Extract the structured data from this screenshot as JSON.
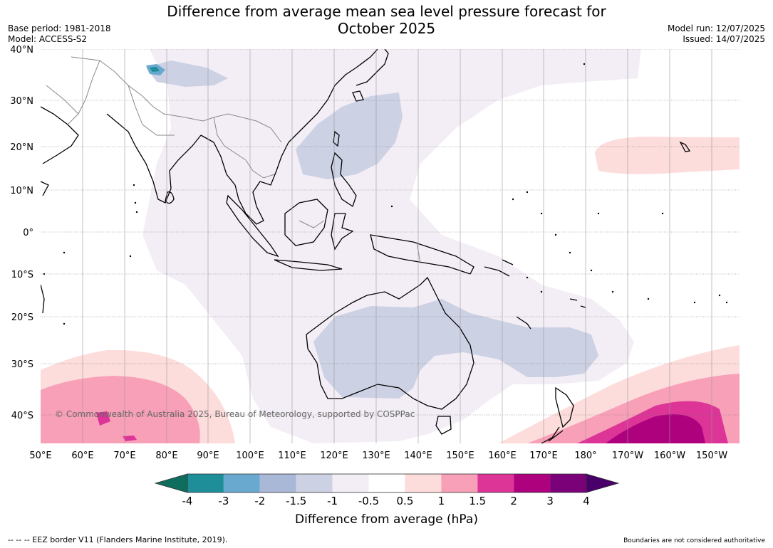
{
  "title_line1": "Difference from average mean sea level pressure forecast for",
  "title_line2": "October 2025",
  "base_period": "Base period: 1981-2018",
  "model": "Model: ACCESS-S2",
  "model_run": "Model run: 12/07/2025",
  "issued": "Issued: 14/07/2025",
  "copyright": "© Commonwealth of Australia 2025, Bureau of Meteorology, supported by COSPPac",
  "lat_labels": [
    "40°N",
    "30°N",
    "20°N",
    "10°N",
    "0°",
    "10°S",
    "20°S",
    "30°S",
    "40°S"
  ],
  "lon_labels": [
    "50°E",
    "60°E",
    "70°E",
    "80°E",
    "90°E",
    "100°E",
    "110°E",
    "120°E",
    "130°E",
    "140°E",
    "150°E",
    "160°E",
    "170°E",
    "180°",
    "170°W",
    "160°W",
    "150°W"
  ],
  "colorbar": {
    "label": "Difference from average (hPa)",
    "ticks": [
      "-4",
      "-3",
      "-2",
      "-1.5",
      "-1",
      "-0.5",
      "0.5",
      "1",
      "1.5",
      "2",
      "3",
      "4"
    ],
    "colors": [
      "#0e6e5e",
      "#1e8e99",
      "#6aa9cf",
      "#a8b8d6",
      "#cdd1e4",
      "#f3eef6",
      "#ffffff",
      "#fddcdc",
      "#f8a0b8",
      "#dd3497",
      "#ae017e",
      "#7a0177",
      "#49006a"
    ]
  },
  "footer_left": "--  --  -- EEZ border V11 (Flanders Marine Institute, 2019).",
  "footer_right": "Boundaries are not considered authoritative"
}
